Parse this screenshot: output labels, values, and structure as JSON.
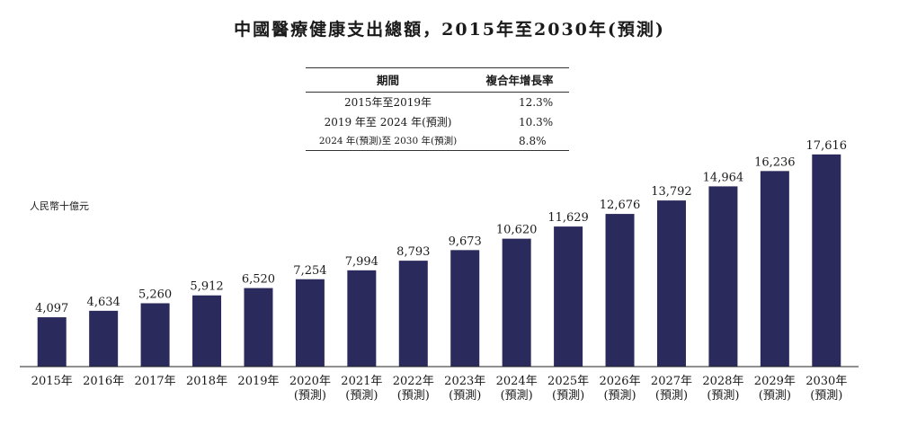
{
  "chart_data": {
    "type": "bar",
    "title": "中國醫療健康支出總額，2015年至2030年(預測)",
    "ylabel": "人民幣十億元",
    "categories": [
      [
        "2015年"
      ],
      [
        "2016年"
      ],
      [
        "2017年"
      ],
      [
        "2018年"
      ],
      [
        "2019年"
      ],
      [
        "2020年",
        "(預測)"
      ],
      [
        "2021年",
        "(預測)"
      ],
      [
        "2022年",
        "(預測)"
      ],
      [
        "2023年",
        "(預測)"
      ],
      [
        "2024年",
        "(預測)"
      ],
      [
        "2025年",
        "(預測)"
      ],
      [
        "2026年",
        "(預測)"
      ],
      [
        "2027年",
        "(預測)"
      ],
      [
        "2028年",
        "(預測)"
      ],
      [
        "2029年",
        "(預測)"
      ],
      [
        "2030年",
        "(預測)"
      ]
    ],
    "values": [
      4097,
      4634,
      5260,
      5912,
      6520,
      7254,
      7994,
      8793,
      9673,
      10620,
      11629,
      12676,
      13792,
      14964,
      16236,
      17616
    ],
    "value_labels": [
      "4,097",
      "4,634",
      "5,260",
      "5,912",
      "6,520",
      "7,254",
      "7,994",
      "8,793",
      "9,673",
      "10,620",
      "11,629",
      "12,676",
      "13,792",
      "14,964",
      "16,236",
      "17,616"
    ],
    "ylim": [
      0,
      18500
    ],
    "grid": false,
    "bar_color": "#2b2a5c",
    "cagr_table": {
      "headers": [
        "期間",
        "複合年增長率"
      ],
      "rows": [
        [
          "2015年至2019年",
          "12.3%"
        ],
        [
          "2019 年至 2024 年(預測)",
          "10.3%"
        ],
        [
          "2024 年(預測)至 2030 年(預測)",
          "8.8%"
        ]
      ]
    }
  }
}
